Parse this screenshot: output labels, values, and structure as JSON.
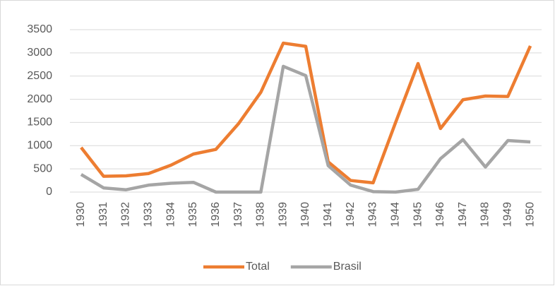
{
  "chart_data": {
    "type": "line",
    "categories": [
      "1930",
      "1931",
      "1932",
      "1933",
      "1934",
      "1935",
      "1936",
      "1937",
      "1938",
      "1939",
      "1940",
      "1941",
      "1942",
      "1943",
      "1944",
      "1945",
      "1946",
      "1947",
      "1948",
      "1949",
      "1950"
    ],
    "series": [
      {
        "name": "Total",
        "color": "#ed7d31",
        "values": [
          960,
          340,
          350,
          400,
          580,
          820,
          920,
          1470,
          2150,
          3210,
          3140,
          650,
          250,
          200,
          1500,
          2770,
          1370,
          1990,
          2070,
          2060,
          3150
        ]
      },
      {
        "name": "Brasil",
        "color": "#a5a5a5",
        "values": [
          380,
          90,
          50,
          150,
          190,
          210,
          0,
          0,
          0,
          2710,
          2510,
          570,
          150,
          10,
          0,
          60,
          720,
          1130,
          540,
          1110,
          1080
        ]
      }
    ],
    "ylim": [
      0,
      3500
    ],
    "yticks": [
      0,
      500,
      1000,
      1500,
      2000,
      2500,
      3000,
      3500
    ],
    "grid": true,
    "legend": "bottom"
  }
}
